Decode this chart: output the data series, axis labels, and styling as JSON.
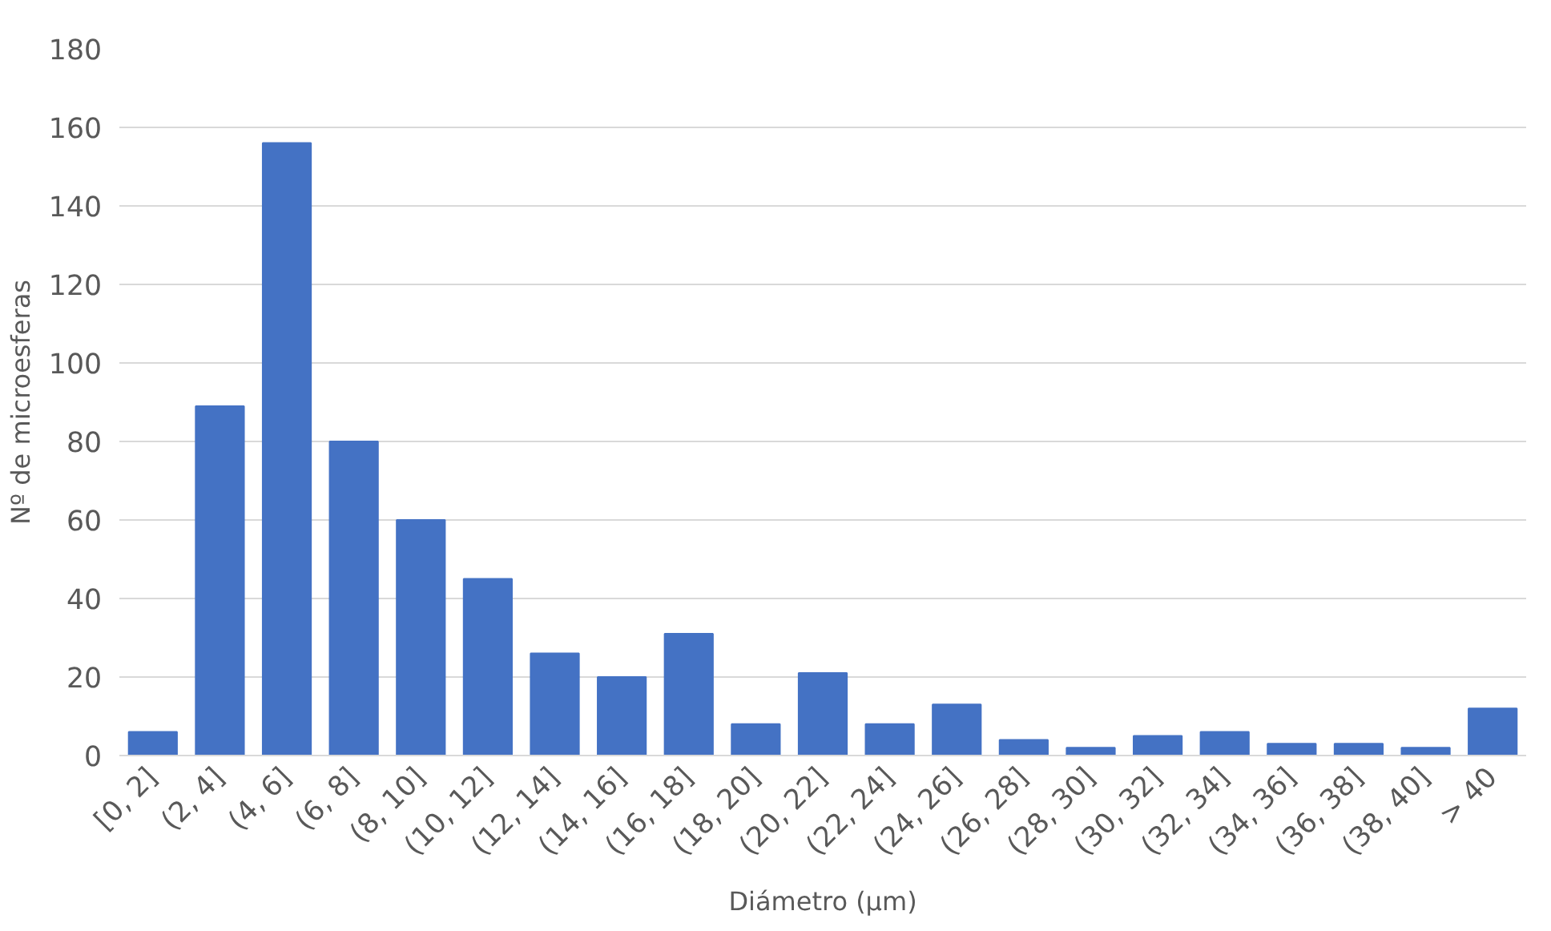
{
  "chart_data": {
    "type": "bar",
    "xlabel": "Diámetro (µm)",
    "ylabel": "Nº de microesferas",
    "categories": [
      "[0, 2]",
      "(2, 4]",
      "(4, 6]",
      "(6, 8]",
      "(8, 10]",
      "(10, 12]",
      "(12, 14]",
      "(14, 16]",
      "(16, 18]",
      "(18, 20]",
      "(20, 22]",
      "(22, 24]",
      "(24, 26]",
      "(26, 28]",
      "(28, 30]",
      "(30, 32]",
      "(32, 34]",
      "(34, 36]",
      "(36, 38]",
      "(38, 40]",
      "> 40"
    ],
    "values": [
      6,
      89,
      156,
      80,
      60,
      45,
      26,
      20,
      31,
      8,
      21,
      8,
      13,
      4,
      2,
      5,
      6,
      3,
      3,
      2,
      12
    ],
    "color": "#4472c4",
    "ylim": [
      0,
      180
    ],
    "yticks": [
      0,
      20,
      40,
      60,
      80,
      100,
      120,
      140,
      160,
      180
    ],
    "grid": "y"
  }
}
